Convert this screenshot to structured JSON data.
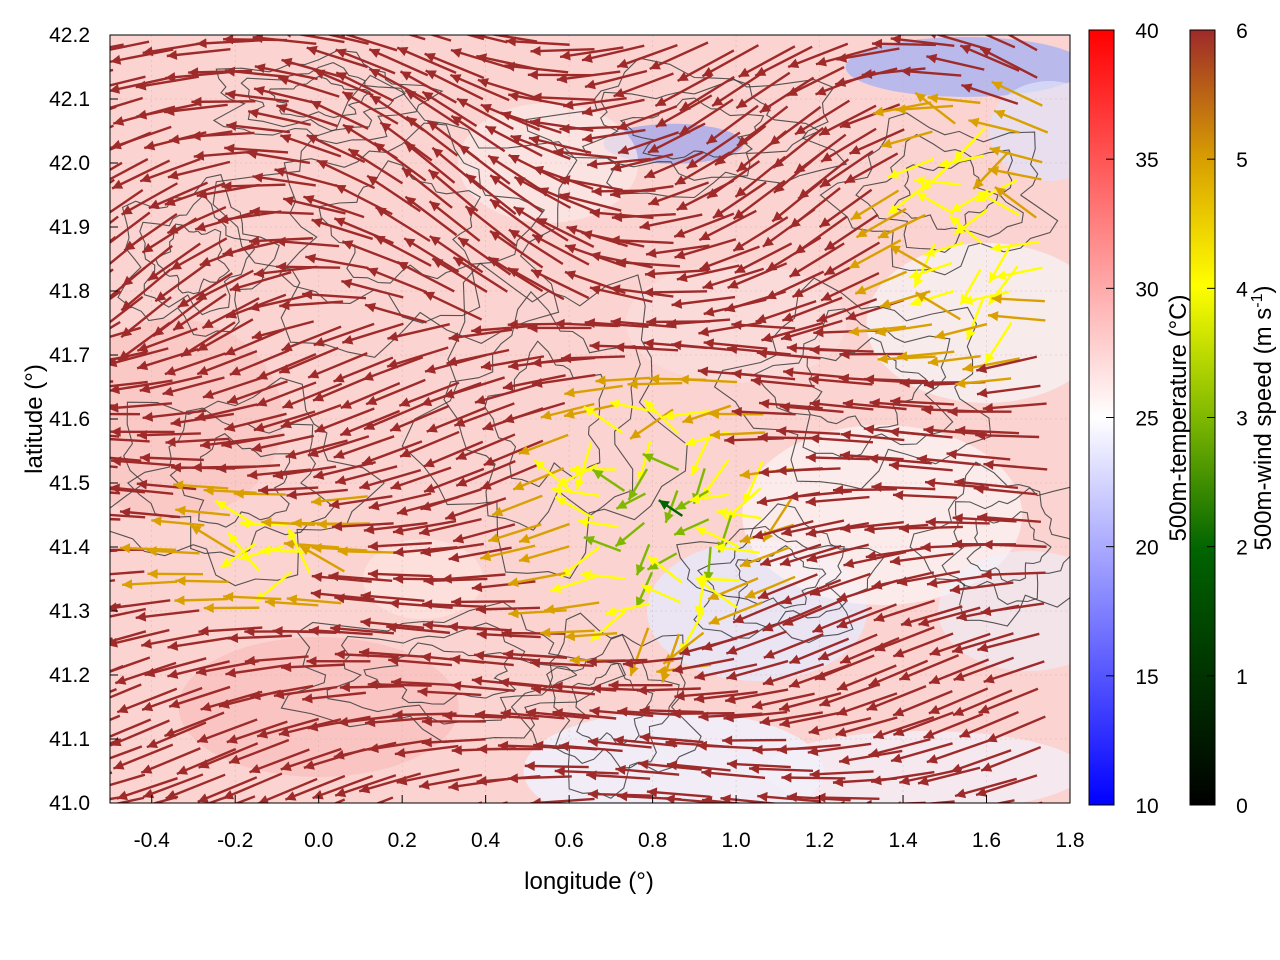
{
  "chart_data": {
    "type": "vector-field",
    "xlabel": "longitude (°)",
    "ylabel": "latitude (°)",
    "xlim": [
      -0.5,
      1.8
    ],
    "ylim": [
      41.0,
      42.2
    ],
    "x_ticks": [
      "-0.4",
      "-0.2",
      "0.0",
      "0.2",
      "0.4",
      "0.6",
      "0.8",
      "1.0",
      "1.2",
      "1.4",
      "1.6",
      "1.8"
    ],
    "y_ticks": [
      "41.0",
      "41.1",
      "41.2",
      "41.3",
      "41.4",
      "41.5",
      "41.6",
      "41.7",
      "41.8",
      "41.9",
      "42.0",
      "42.1",
      "42.2"
    ],
    "grid": true,
    "background_field": {
      "name": "500m-temperature",
      "colorbar_label": "500m-temperature (°C)",
      "range": [
        10,
        40
      ],
      "ticks": [
        "10",
        "15",
        "20",
        "25",
        "30",
        "35",
        "40"
      ],
      "colors": [
        "#0000ff",
        "#ffffff",
        "#ff0000"
      ],
      "typical_value": 30
    },
    "vector_field": {
      "name": "500m-wind speed",
      "colorbar_label_parts": [
        "500m-wind speed (m s",
        "-1",
        ")"
      ],
      "range": [
        0,
        6
      ],
      "ticks": [
        "0",
        "1",
        "2",
        "3",
        "4",
        "5",
        "6"
      ],
      "colors": [
        "#000000",
        "#006400",
        "#7fb800",
        "#ffff00",
        "#d9a000",
        "#9e2a2a"
      ],
      "prevailing_flow": "from east to west, strongest over the west and south, weaker and variable near 0.7-1.0 longitude"
    },
    "contours": "terrain elevation isolines (dark gray)"
  }
}
